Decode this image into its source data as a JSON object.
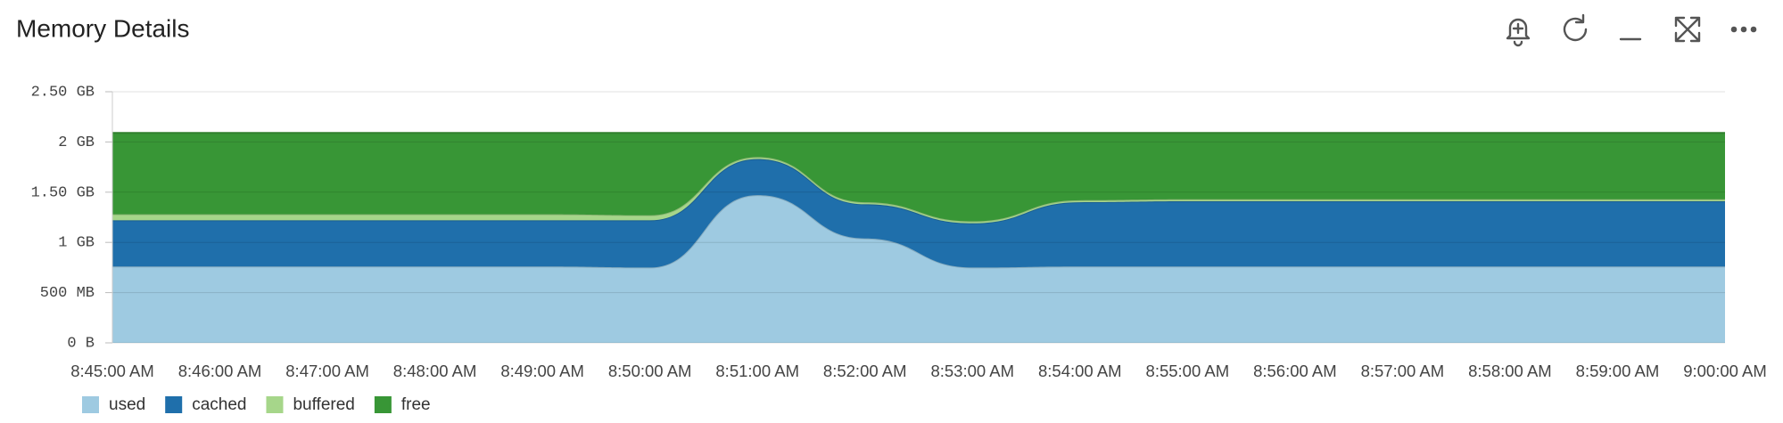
{
  "chart_data": {
    "type": "stacked-area",
    "title": "Memory Details",
    "x": [
      "8:45:00 AM",
      "8:46:00 AM",
      "8:47:00 AM",
      "8:48:00 AM",
      "8:49:00 AM",
      "8:50:00 AM",
      "8:51:00 AM",
      "8:52:00 AM",
      "8:53:00 AM",
      "8:54:00 AM",
      "8:55:00 AM",
      "8:56:00 AM",
      "8:57:00 AM",
      "8:58:00 AM",
      "8:59:00 AM",
      "9:00:00 AM"
    ],
    "series": [
      {
        "name": "used",
        "color": "#9ecae1",
        "values": [
          0.76,
          0.76,
          0.76,
          0.76,
          0.76,
          0.75,
          1.47,
          1.04,
          0.75,
          0.76,
          0.76,
          0.76,
          0.76,
          0.76,
          0.76,
          0.76
        ]
      },
      {
        "name": "cached",
        "color": "#1f6fab",
        "values": [
          0.46,
          0.46,
          0.46,
          0.46,
          0.46,
          0.47,
          0.36,
          0.34,
          0.44,
          0.64,
          0.65,
          0.65,
          0.65,
          0.65,
          0.65,
          0.65
        ]
      },
      {
        "name": "buffered",
        "color": "#a6d68a",
        "values": [
          0.06,
          0.06,
          0.06,
          0.06,
          0.06,
          0.05,
          0.02,
          0.02,
          0.02,
          0.02,
          0.02,
          0.02,
          0.02,
          0.02,
          0.02,
          0.02
        ]
      },
      {
        "name": "free",
        "color": "#389636",
        "values": [
          0.81,
          0.81,
          0.81,
          0.81,
          0.81,
          0.82,
          0.24,
          0.69,
          0.88,
          0.67,
          0.66,
          0.66,
          0.66,
          0.66,
          0.66,
          0.66
        ]
      }
    ],
    "ylim": [
      0,
      2.5
    ],
    "yticks": [
      {
        "value": 0,
        "label": "0 B"
      },
      {
        "value": 0.5,
        "label": "500 MB"
      },
      {
        "value": 1,
        "label": "1 GB"
      },
      {
        "value": 1.5,
        "label": "1.50 GB"
      },
      {
        "value": 2,
        "label": "2 GB"
      },
      {
        "value": 2.5,
        "label": "2.50 GB"
      }
    ],
    "grid": true
  }
}
